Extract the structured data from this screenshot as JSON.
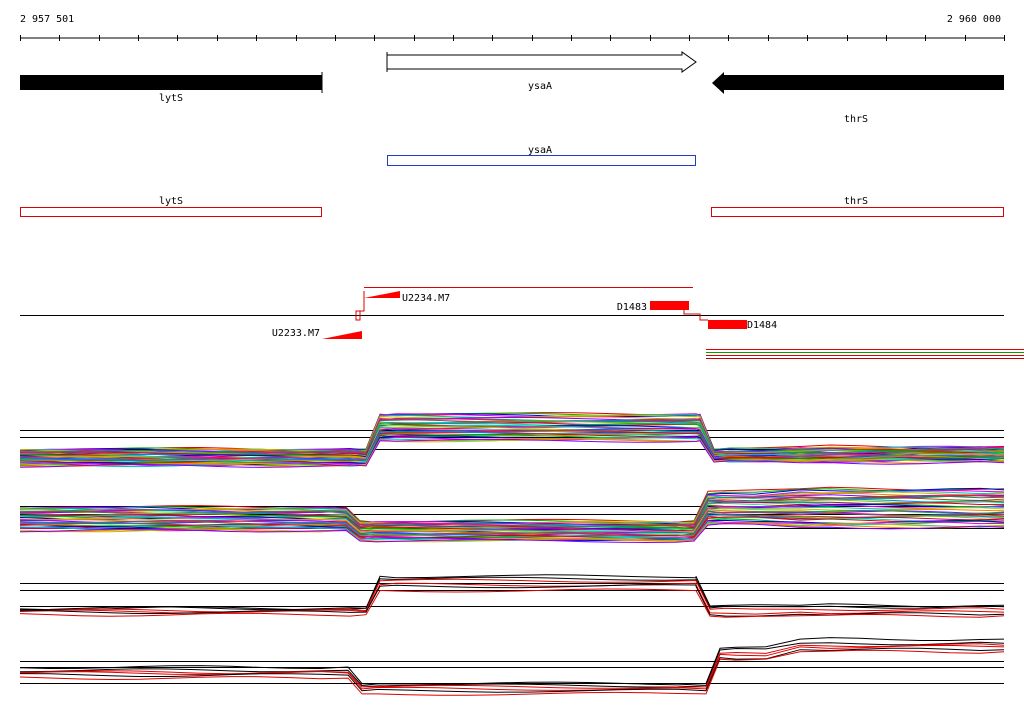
{
  "ruler": {
    "start_label": "2 957 501",
    "end_label": "2 960 000",
    "start": 2957501,
    "end": 2960000
  },
  "genes": {
    "lytS": "lytS",
    "ysaA": "ysaA",
    "thrS": "thrS"
  },
  "annotations": {
    "ysaA": "ysaA",
    "lytS": "lytS",
    "thrS": "thrS"
  },
  "probes": {
    "u2234": "U2234.M7",
    "u2233": "U2233.M7",
    "d1483": "D1483",
    "d1484": "D1484"
  },
  "colors": {
    "gene_fill": "#000000",
    "annotation_ysaA": "#1f3fbf",
    "annotation_red": "#e00000",
    "probe": "#ff0000"
  }
}
